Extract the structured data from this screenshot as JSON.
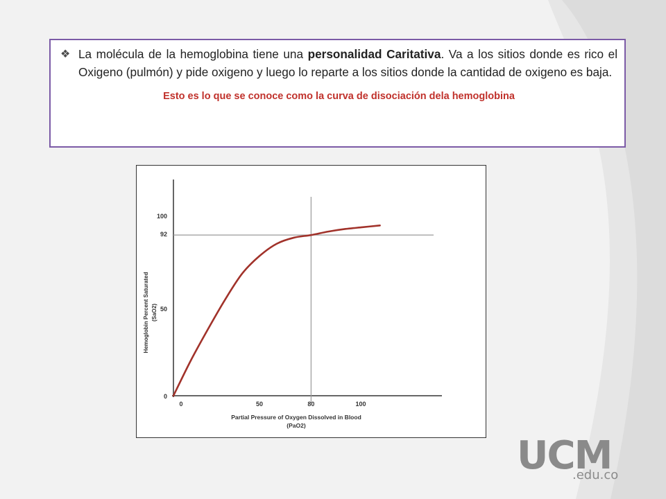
{
  "slide": {
    "bullet_icon": "diamond-bullet-icon",
    "paragraph_part1": "La molécula de la hemoglobina tiene una ",
    "paragraph_bold": "personalidad Caritativa",
    "paragraph_part2": ". Va a los sitios donde es rico el Oxigeno (pulmón) y pide oxigeno y luego lo reparte a los sitios donde la cantidad de oxigeno es baja.",
    "caption": "Esto es lo que se conoce como la curva de disociación dela hemoglobina",
    "accent_color": "#c0312b",
    "border_color": "#7b5aa6"
  },
  "logo": {
    "main": "UCM",
    "sub": ".edu.co"
  },
  "chart_data": {
    "type": "line",
    "xlabel": "Partial Pressure of Oxygen Dissolved in Blood (PaO2)",
    "ylabel": "Hemoglobin Percent Saturated (SaO2)",
    "x_ticks": [
      "0",
      "50",
      "80",
      "100"
    ],
    "y_ticks": [
      "0",
      "50",
      "92",
      "100"
    ],
    "xlim": [
      0,
      150
    ],
    "ylim": [
      0,
      120
    ],
    "reference_x": 80,
    "reference_y": 92,
    "series": [
      {
        "color": "#a1322a",
        "x": [
          0,
          10,
          20,
          30,
          40,
          50,
          60,
          70,
          80,
          90,
          100,
          110,
          120
        ],
        "y": [
          0,
          20,
          38,
          55,
          70,
          80,
          87,
          90.5,
          92,
          94,
          95.5,
          96.5,
          97.5
        ]
      }
    ]
  }
}
